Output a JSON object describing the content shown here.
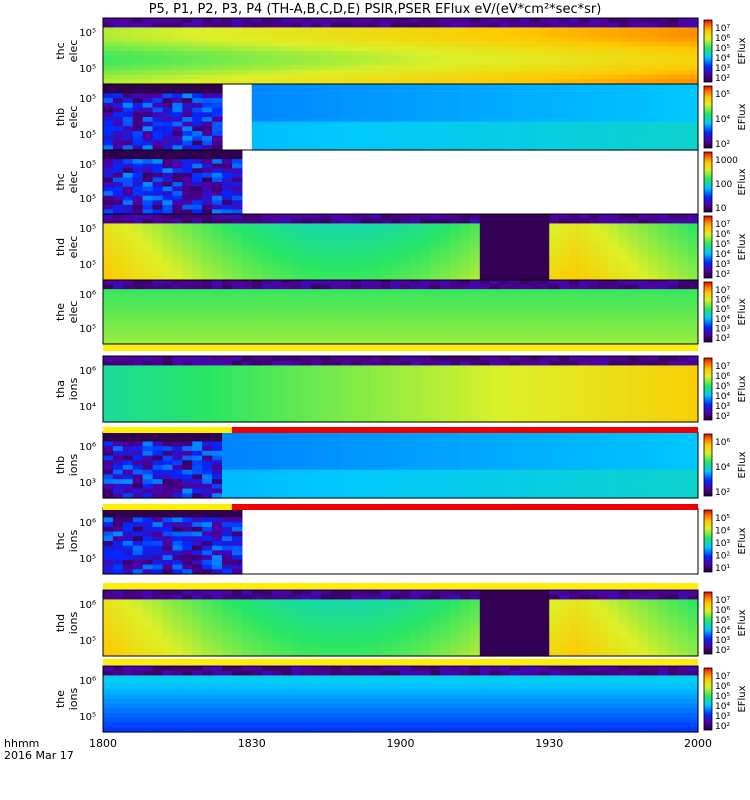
{
  "title": "P5, P1, P2, P3, P4 (TH-A,B,C,D,E) PSIR,PSER EFlux eV/(eV*cm²*sec*sr)",
  "colorbar_label": "EFlux",
  "x_axis": {
    "var_label": "hhmm",
    "date_label": "2016 Mar 17",
    "tick_labels": [
      "1800",
      "1830",
      "1900",
      "1930",
      "2000"
    ]
  },
  "chart_data": {
    "type": "heatmap",
    "x_range_hhmm": [
      "1800",
      "2000"
    ],
    "panels": [
      {
        "label": [
          "thc",
          "elec"
        ],
        "yticks": [
          "10⁵",
          "10⁵"
        ],
        "cbar_ticks": [
          "10⁷",
          "10⁶",
          "10⁵",
          "10⁴",
          "10³",
          "10²"
        ],
        "data_end": "2000",
        "mode": "full"
      },
      {
        "label": [
          "thb",
          "elec"
        ],
        "yticks": [
          "10⁵",
          "10⁵"
        ],
        "cbar_ticks": [
          "10⁵",
          "10⁴",
          "10²"
        ],
        "data_end": "2000",
        "gap": [
          "1823",
          "1830"
        ],
        "mode": "sparse_then_uniform"
      },
      {
        "label": [
          "thc",
          "elec"
        ],
        "yticks": [
          "10⁵",
          "10⁵"
        ],
        "cbar_ticks": [
          "1000",
          "100",
          "10"
        ],
        "data_end": "1827",
        "mode": "sparse"
      },
      {
        "label": [
          "thd",
          "elec"
        ],
        "yticks": [
          "10⁵",
          "10⁵"
        ],
        "cbar_ticks": [
          "10⁷",
          "10⁶",
          "10⁵",
          "10⁴",
          "10³",
          "10²"
        ],
        "data_end": "2000",
        "eclipse": [
          "1915",
          "1930"
        ],
        "mode": "full"
      },
      {
        "label": [
          "the",
          "elec"
        ],
        "yticks": [
          "10⁶",
          "10⁵"
        ],
        "cbar_ticks": [
          "10⁷",
          "10⁶",
          "10⁵",
          "10⁴",
          "10³",
          "10²"
        ],
        "data_end": "2000",
        "mode": "full"
      },
      {
        "label": [
          "tha",
          "ions"
        ],
        "yticks": [
          "10⁶",
          "10⁴"
        ],
        "cbar_ticks": [
          "10⁷",
          "10⁶",
          "10⁵",
          "10⁴",
          "10³",
          "10²"
        ],
        "data_end": "2000",
        "mode": "full"
      },
      {
        "label": [
          "thb",
          "ions"
        ],
        "yticks": [
          "10⁶",
          "10³"
        ],
        "cbar_ticks": [
          "10⁶",
          "10⁴",
          "10²"
        ],
        "data_end": "2000",
        "mode": "sparse_then_uniform"
      },
      {
        "label": [
          "thc",
          "ions"
        ],
        "yticks": [
          "10⁶",
          "10⁵"
        ],
        "cbar_ticks": [
          "10⁵",
          "10⁴",
          "10³",
          "10²",
          "10¹"
        ],
        "data_end": "1827",
        "mode": "sparse"
      },
      {
        "label": [
          "thd",
          "ions"
        ],
        "yticks": [
          "10⁶",
          "10⁵"
        ],
        "cbar_ticks": [
          "10⁷",
          "10⁶",
          "10⁵",
          "10⁴",
          "10³",
          "10²"
        ],
        "data_end": "2000",
        "eclipse": [
          "1915",
          "1930"
        ],
        "mode": "full"
      },
      {
        "label": [
          "the",
          "ions"
        ],
        "yticks": [
          "10⁶",
          "10⁵"
        ],
        "cbar_ticks": [
          "10⁷",
          "10⁶",
          "10⁵",
          "10⁴",
          "10³",
          "10²"
        ],
        "data_end": "2000",
        "mode": "full"
      }
    ],
    "mode_bars": [
      {
        "after_panel": 4,
        "segments": [
          {
            "from": "1800",
            "to": "2000",
            "color": "#ffee00"
          }
        ]
      },
      {
        "after_panel": 5,
        "segments": [
          {
            "from": "1800",
            "to": "1826",
            "color": "#ffee00"
          },
          {
            "from": "1826",
            "to": "2000",
            "color": "#ee0000"
          }
        ]
      },
      {
        "after_panel": 6,
        "segments": [
          {
            "from": "1800",
            "to": "1826",
            "color": "#ffee00"
          },
          {
            "from": "1826",
            "to": "2000",
            "color": "#ee0000"
          }
        ]
      },
      {
        "after_panel": 7,
        "segments": [
          {
            "from": "1800",
            "to": "2000",
            "color": "#ffee00"
          }
        ]
      },
      {
        "after_panel": 8,
        "segments": [
          {
            "from": "1800",
            "to": "2000",
            "color": "#ffee00"
          }
        ]
      }
    ]
  },
  "icons": {
    "colorbar": "rainbow-colorbar-icon"
  }
}
